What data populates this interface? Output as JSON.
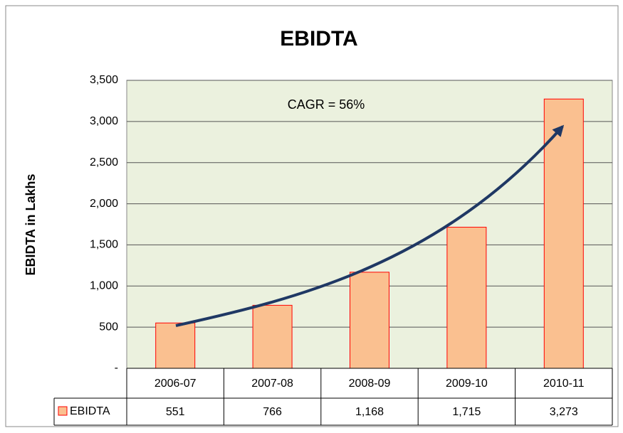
{
  "chart_data": {
    "type": "bar",
    "title": "EBIDTA",
    "y_label": "EBIDTA in Lakhs",
    "annotation": "CAGR = 56%",
    "categories": [
      "2006-07",
      "2007-08",
      "2008-09",
      "2009-10",
      "2010-11"
    ],
    "series": [
      {
        "name": "EBIDTA",
        "color": "#fac090",
        "edgecolor": "#ff0000",
        "values": [
          551,
          766,
          1168,
          1715,
          3273
        ],
        "value_labels": [
          "551",
          "766",
          "1,168",
          "1,715",
          "3,273"
        ]
      }
    ],
    "ylim": [
      0,
      3500
    ],
    "yticks": [
      {
        "value": 0,
        "label": "-"
      },
      500,
      {
        "value": 1000,
        "label": "1,000"
      },
      {
        "value": 1500,
        "label": "1,500"
      },
      {
        "value": 2000,
        "label": "2,000"
      },
      {
        "value": 2500,
        "label": "2,500"
      },
      {
        "value": 3000,
        "label": "3,000"
      },
      {
        "value": 3500,
        "label": "3,500"
      }
    ],
    "grid": true,
    "plot_background": "#ebf1de"
  }
}
